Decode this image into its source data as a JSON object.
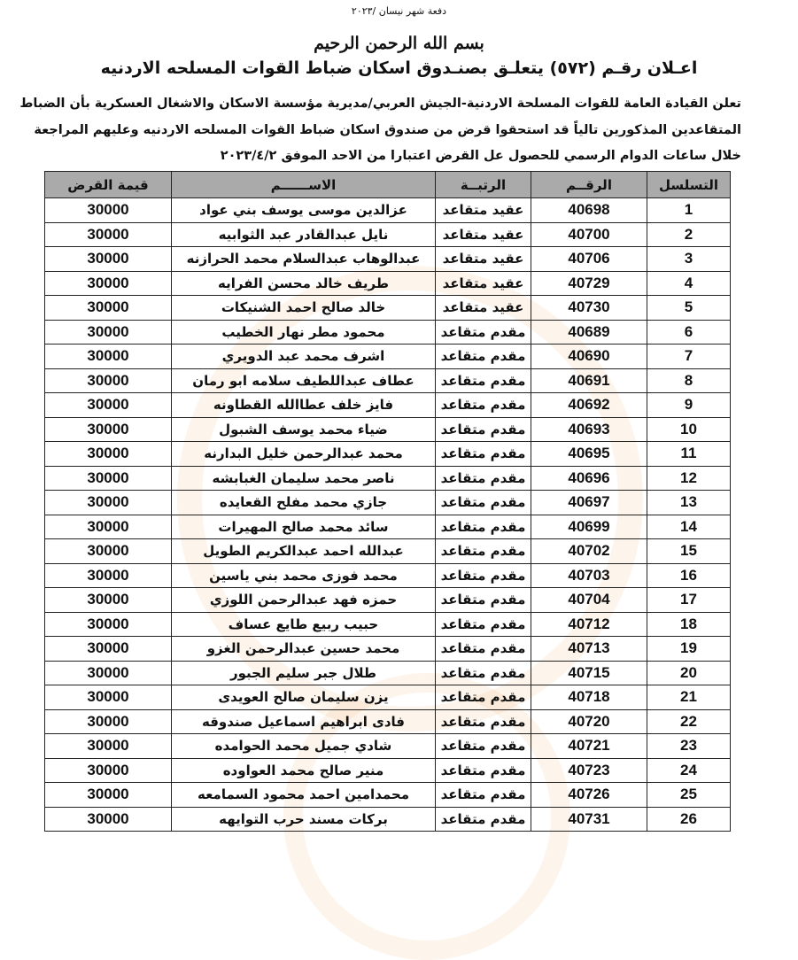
{
  "batch": "دفعة شهر نيسان /٢٠٢٣",
  "basmala": "بسم الله الرحمن الرحيم",
  "title": "اعـلان رقـم (٥٧٢) يتعلـق بصنـدوق اسكان ضباط القوات المسلحه الاردنيه",
  "paragraph": [
    "تعلن القيادة العامة للقوات المسلحة الاردنية-الجيش العربي/مديرية مؤسسة الاسكان والاشغال العسكرية بأن الضباط",
    "المتقاعدين المذكورين تالياً قد استحقوا قرض من صندوق اسكان ضباط القوات المسلحه الاردنيه وعليهم المراجعة",
    "خلال ساعات الدوام الرسمي للحصول عل القرض اعتبارا من الاحد الموفق ٢٠٢٣/٤/٢"
  ],
  "table": {
    "headers": [
      "التسلسل",
      "الرقــم",
      "الرتبــة",
      "الاســــــم",
      "قيمة القرض"
    ],
    "rows": [
      [
        "1",
        "40698",
        "عقيد متقاعد",
        "عزالدين موسى يوسف بني عواد",
        "30000"
      ],
      [
        "2",
        "40700",
        "عقيد متقاعد",
        "نايل عبدالقادر عبد الثوابيه",
        "30000"
      ],
      [
        "3",
        "40706",
        "عقيد متقاعد",
        "عبدالوهاب عبدالسلام محمد الحرازنه",
        "30000"
      ],
      [
        "4",
        "40729",
        "عقيد متقاعد",
        "طريف خالد محسن الفرايه",
        "30000"
      ],
      [
        "5",
        "40730",
        "عقيد متقاعد",
        "خالد صالح احمد الشنيكات",
        "30000"
      ],
      [
        "6",
        "40689",
        "مقدم متقاعد",
        "محمود مطر نهار الخطيب",
        "30000"
      ],
      [
        "7",
        "40690",
        "مقدم متقاعد",
        "اشرف محمد عبد الدويري",
        "30000"
      ],
      [
        "8",
        "40691",
        "مقدم متقاعد",
        "عطاف عبداللطيف سلامه ابو رمان",
        "30000"
      ],
      [
        "9",
        "40692",
        "مقدم متقاعد",
        "فايز خلف عطاالله القطاونه",
        "30000"
      ],
      [
        "10",
        "40693",
        "مقدم متقاعد",
        "ضياء محمد يوسف الشبول",
        "30000"
      ],
      [
        "11",
        "40695",
        "مقدم متقاعد",
        "محمد عبدالرحمن خليل البدارنه",
        "30000"
      ],
      [
        "12",
        "40696",
        "مقدم متقاعد",
        "ناصر محمد سليمان الغبابشه",
        "30000"
      ],
      [
        "13",
        "40697",
        "مقدم متقاعد",
        "جازي محمد مفلح القعايده",
        "30000"
      ],
      [
        "14",
        "40699",
        "مقدم متقاعد",
        "سائد محمد صالح المهيرات",
        "30000"
      ],
      [
        "15",
        "40702",
        "مقدم متقاعد",
        "عبدالله احمد عبدالكريم الطويل",
        "30000"
      ],
      [
        "16",
        "40703",
        "مقدم متقاعد",
        "محمد فوزى محمد بني ياسين",
        "30000"
      ],
      [
        "17",
        "40704",
        "مقدم متقاعد",
        "حمزه فهد عبدالرحمن اللوزي",
        "30000"
      ],
      [
        "18",
        "40712",
        "مقدم متقاعد",
        "حبيب ربيع طايع عساف",
        "30000"
      ],
      [
        "19",
        "40713",
        "مقدم متقاعد",
        "محمد حسين عبدالرحمن الغزو",
        "30000"
      ],
      [
        "20",
        "40715",
        "مقدم متقاعد",
        "طلال جبر سليم الجبور",
        "30000"
      ],
      [
        "21",
        "40718",
        "مقدم متقاعد",
        "يزن سليمان صالح العويدى",
        "30000"
      ],
      [
        "22",
        "40720",
        "مقدم متقاعد",
        "فادى ابراهيم اسماعيل صندوقه",
        "30000"
      ],
      [
        "23",
        "40721",
        "مقدم متقاعد",
        "شادي جميل محمد الحوامده",
        "30000"
      ],
      [
        "24",
        "40723",
        "مقدم متقاعد",
        "منير صالح محمد العواوده",
        "30000"
      ],
      [
        "25",
        "40726",
        "مقدم متقاعد",
        "محمدامين احمد محمود السمامعه",
        "30000"
      ],
      [
        "26",
        "40731",
        "مقدم متقاعد",
        "بركات مسند حرب التوايهه",
        "30000"
      ]
    ]
  }
}
